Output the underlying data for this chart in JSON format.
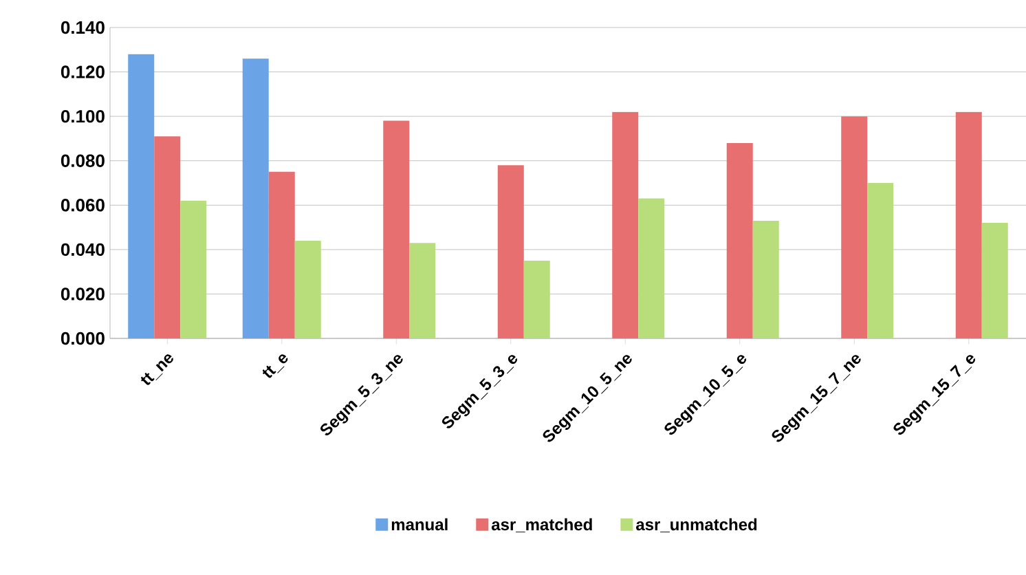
{
  "chart_data": {
    "type": "bar",
    "categories": [
      "tt_ne",
      "tt_e",
      "Segm_5_3_ne",
      "Segm_5_3_e",
      "Segm_10_5_ne",
      "Segm_10_5_e",
      "Segm_15_7_ne",
      "Segm_15_7_e"
    ],
    "series": [
      {
        "name": "manual",
        "color": "#6aa4e6",
        "values": [
          0.128,
          0.126,
          null,
          null,
          null,
          null,
          null,
          null
        ]
      },
      {
        "name": "asr_matched",
        "color": "#e86f6f",
        "values": [
          0.091,
          0.075,
          0.098,
          0.078,
          0.102,
          0.088,
          0.1,
          0.102
        ]
      },
      {
        "name": "asr_unmatched",
        "color": "#b8de7c",
        "values": [
          0.062,
          0.044,
          0.043,
          0.035,
          0.063,
          0.053,
          0.07,
          0.052
        ]
      }
    ],
    "ylim": [
      0,
      0.14
    ],
    "yticks": [
      {
        "value": 0,
        "label": "0.000"
      },
      {
        "value": 0.02,
        "label": "0.020"
      },
      {
        "value": 0.04,
        "label": "0.040"
      },
      {
        "value": 0.06,
        "label": "0.060"
      },
      {
        "value": 0.08,
        "label": "0.080"
      },
      {
        "value": 0.1,
        "label": "0.100"
      },
      {
        "value": 0.12,
        "label": "0.120"
      },
      {
        "value": 0.14,
        "label": "0.140"
      }
    ],
    "grid": "y",
    "legend": "bottom"
  }
}
